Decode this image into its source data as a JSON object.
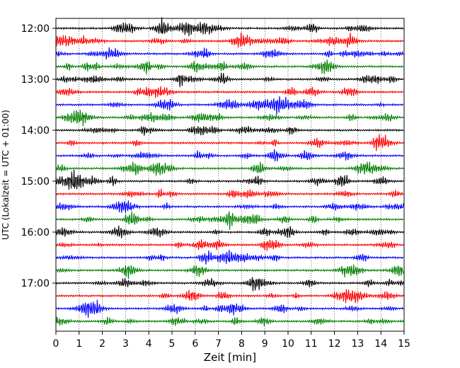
{
  "chart_data": {
    "type": "line",
    "title": "",
    "xlabel": "Zeit  [min]",
    "ylabel": "UTC (Lokalzeit = UTC + 01:00)",
    "xlim": [
      0,
      15
    ],
    "x_ticks": [
      "0",
      "1",
      "2",
      "3",
      "4",
      "5",
      "6",
      "7",
      "8",
      "9",
      "10",
      "11",
      "12",
      "13",
      "14",
      "15"
    ],
    "y_ticks": [
      {
        "label": "12:00",
        "trace": 0
      },
      {
        "label": "13:00",
        "trace": 4
      },
      {
        "label": "14:00",
        "trace": 8
      },
      {
        "label": "15:00",
        "trace": 12
      },
      {
        "label": "16:00",
        "trace": 16
      },
      {
        "label": "17:00",
        "trace": 20
      }
    ],
    "trace_count": 24,
    "trace_interval_min": 15,
    "trace_colors": [
      "#000000",
      "#ff0000",
      "#0000ff",
      "#008000"
    ],
    "grid": "vertical dotted",
    "legend": "none"
  }
}
